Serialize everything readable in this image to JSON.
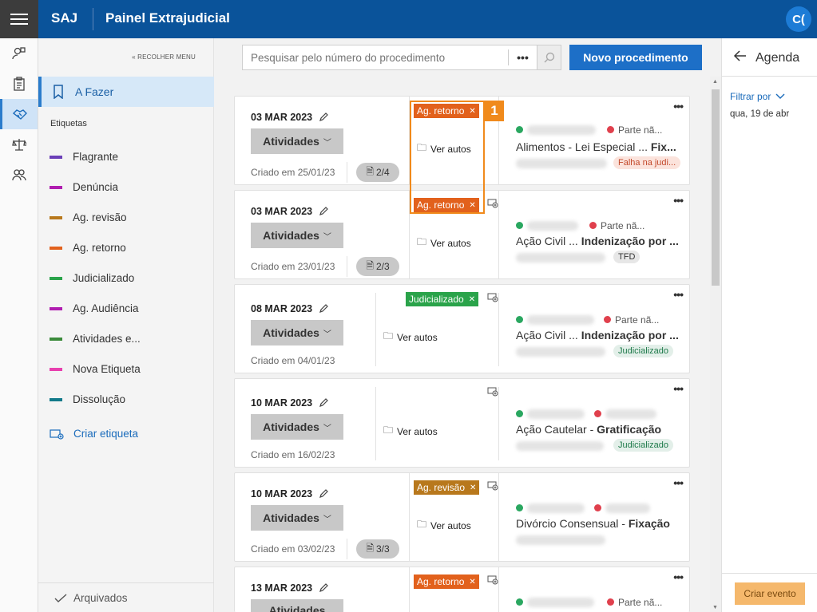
{
  "app": {
    "brand": "SAJ",
    "title": "Painel Extrajudicial",
    "avatar": "C("
  },
  "colors": {
    "header": "#0a539a",
    "primary_button": "#1d6fc7",
    "highlight": "#f08a1c",
    "criar_evento": "#f5b86c"
  },
  "rail_icons": [
    "user-search-icon",
    "clipboard-icon",
    "handshake-icon",
    "scales-icon",
    "users-icon"
  ],
  "menu": {
    "collapse_label": "RECOLHER MENU",
    "afazer": "A Fazer",
    "etiquetas_heading": "Etiquetas",
    "tags": [
      {
        "label": "Flagrante",
        "color": "#6b3fb8"
      },
      {
        "label": "Denúncia",
        "color": "#b01db0"
      },
      {
        "label": "Ag. revisão",
        "color": "#b8781c"
      },
      {
        "label": "Ag. retorno",
        "color": "#e2611c"
      },
      {
        "label": "Judicializado",
        "color": "#2aa34a"
      },
      {
        "label": "Ag. Audiência",
        "color": "#b01db0"
      },
      {
        "label": "Atividades e...",
        "color": "#3a8a3a"
      },
      {
        "label": "Nova Etiqueta",
        "color": "#e83fae"
      },
      {
        "label": "Dissolução",
        "color": "#127a8a"
      }
    ],
    "criar_etiqueta": "Criar etiqueta",
    "arquivados": "Arquivados"
  },
  "search": {
    "placeholder": "Pesquisar pelo número do procedimento",
    "dots": "•••"
  },
  "novo_button": "Novo procedimento",
  "highlight_number": "1",
  "common": {
    "atividades": "Atividades",
    "ver_autos": "Ver autos",
    "parte": "Parte nã..."
  },
  "cards": [
    {
      "date": "03 MAR 2023",
      "criado": "Criado em 25/01/23",
      "count": "2/4",
      "label": "Ag. retorno",
      "title_pre": "Alimentos - Lei Especial ... ",
      "title_bold": "Fix...",
      "chip": "Falha na judi..."
    },
    {
      "date": "03 MAR 2023",
      "criado": "Criado em 23/01/23",
      "count": "2/3",
      "label": "Ag. retorno",
      "title_pre": "Ação Civil ... ",
      "title_bold": "Indenização por ...",
      "chip": "TFD"
    },
    {
      "date": "08 MAR 2023",
      "criado": "Criado em 04/01/23",
      "label": "Judicializado",
      "title_pre": "Ação Civil ... ",
      "title_bold": "Indenização por ...",
      "chip": "Judicializado"
    },
    {
      "date": "10 MAR 2023",
      "criado": "Criado em 16/02/23",
      "title_pre": "Ação Cautelar - ",
      "title_bold": "Gratificação",
      "chip": "Judicializado"
    },
    {
      "date": "10 MAR 2023",
      "criado": "Criado em 03/02/23",
      "count": "3/3",
      "label": "Ag. revisão",
      "title_pre": "Divórcio Consensual - ",
      "title_bold": "Fixação"
    },
    {
      "date": "13 MAR 2023",
      "label": "Ag. retorno"
    }
  ],
  "agenda": {
    "title": "Agenda",
    "filtrar": "Filtrar por",
    "date": "qua, 19 de abr",
    "criar_evento": "Criar evento"
  }
}
